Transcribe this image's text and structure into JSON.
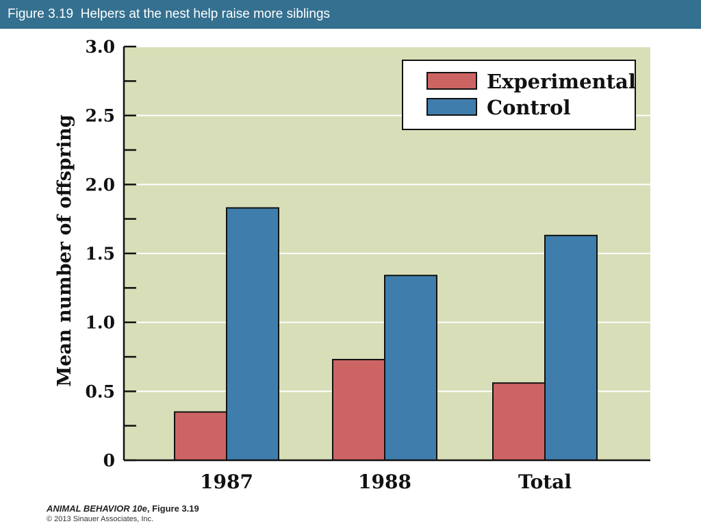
{
  "header": {
    "title": "Figure 3.19  Helpers at the nest help raise more siblings"
  },
  "footer": {
    "book_title": "ANIMAL BEHAVIOR 10e",
    "figure_ref": ", Figure 3.19",
    "copyright": "© 2013 Sinauer Associates, Inc."
  },
  "colors": {
    "header_bg": "#34708f",
    "plot_bg": "#d8dfb8",
    "experimental": "#cd6464",
    "control": "#3f7eac"
  },
  "chart_data": {
    "type": "bar",
    "title": "",
    "xlabel": "",
    "ylabel": "Mean number of offspring",
    "categories": [
      "1987",
      "1988",
      "Total"
    ],
    "series": [
      {
        "name": "Experimental",
        "values": [
          0.35,
          0.73,
          0.56
        ]
      },
      {
        "name": "Control",
        "values": [
          1.83,
          1.34,
          1.63
        ]
      }
    ],
    "ylim": [
      0,
      3.0
    ],
    "yticks": [
      0,
      0.5,
      1.0,
      1.5,
      2.0,
      2.5,
      3.0
    ],
    "ytick_labels": [
      "0",
      "0.5",
      "1.0",
      "1.5",
      "2.0",
      "2.5",
      "3.0"
    ],
    "grid": true,
    "legend_position": "top-right"
  }
}
